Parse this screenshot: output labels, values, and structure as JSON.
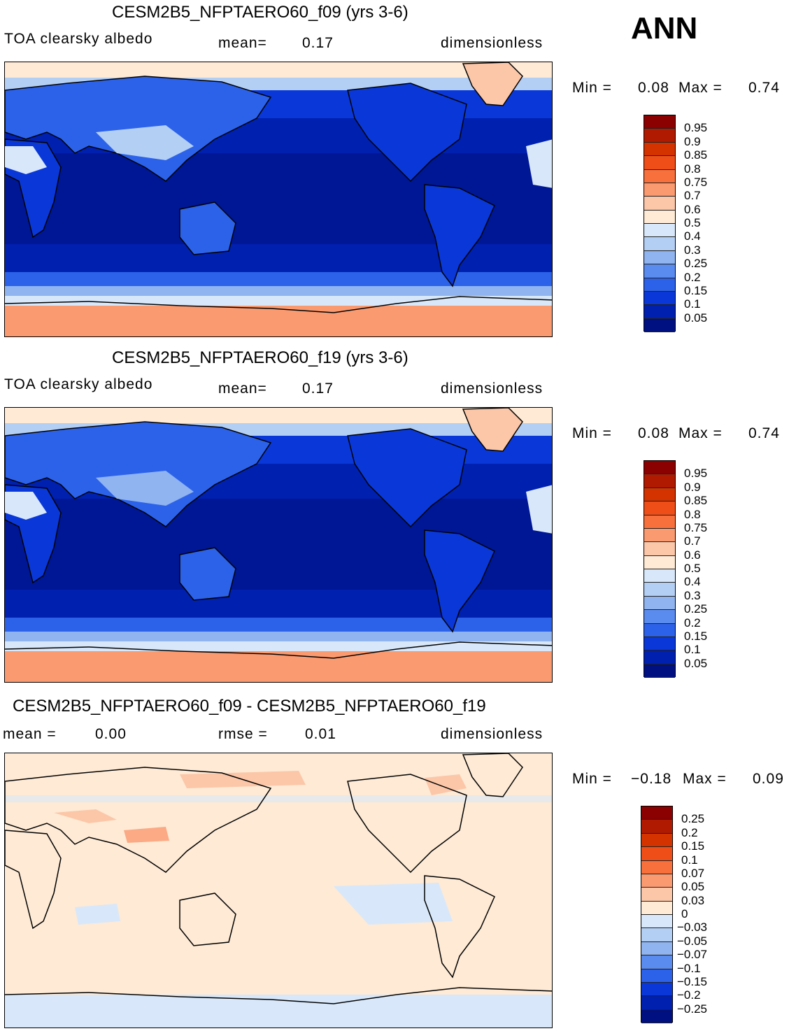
{
  "season": "ANN",
  "panels": [
    {
      "title": "CESM2B5_NFPTAERO60_f09 (yrs 3-6)",
      "variable": "TOA clearsky albedo",
      "stat1_label": "mean=",
      "stat1_value": "0.17",
      "units": "dimensionless",
      "min_label": "Min =",
      "min_value": "0.08",
      "max_label": "Max =",
      "max_value": "0.74",
      "levels": [
        "0.95",
        "0.9",
        "0.85",
        "0.8",
        "0.75",
        "0.7",
        "0.6",
        "0.5",
        "0.4",
        "0.3",
        "0.25",
        "0.2",
        "0.15",
        "0.1",
        "0.05"
      ]
    },
    {
      "title": "CESM2B5_NFPTAERO60_f19 (yrs 3-6)",
      "variable": "TOA clearsky albedo",
      "stat1_label": "mean=",
      "stat1_value": "0.17",
      "units": "dimensionless",
      "min_label": "Min =",
      "min_value": "0.08",
      "max_label": "Max =",
      "max_value": "0.74",
      "levels": [
        "0.95",
        "0.9",
        "0.85",
        "0.8",
        "0.75",
        "0.7",
        "0.6",
        "0.5",
        "0.4",
        "0.3",
        "0.25",
        "0.2",
        "0.15",
        "0.1",
        "0.05"
      ]
    },
    {
      "title": "CESM2B5_NFPTAERO60_f09 - CESM2B5_NFPTAERO60_f19",
      "stat1_label": "mean =",
      "stat1_value": "0.00",
      "stat2_label": "rmse =",
      "stat2_value": "0.01",
      "units": "dimensionless",
      "min_label": "Min =",
      "min_value": "−0.18",
      "max_label": "Max =",
      "max_value": "0.09",
      "levels": [
        "0.25",
        "0.2",
        "0.15",
        "0.1",
        "0.07",
        "0.05",
        "0.03",
        "0",
        "−0.03",
        "−0.05",
        "−0.07",
        "−0.1",
        "−0.15",
        "−0.2",
        "−0.25"
      ]
    }
  ],
  "colors": {
    "abs_scale": [
      "#8b0000",
      "#b01a00",
      "#d43300",
      "#f04e18",
      "#f8703c",
      "#fa9a70",
      "#fcc7a8",
      "#feead5",
      "#d8e8fa",
      "#b4cff4",
      "#8fb4f0",
      "#5a8cf0",
      "#2c62ea",
      "#0a38d8",
      "#0020b0",
      "#001080"
    ],
    "diff_scale": [
      "#8b0000",
      "#b01a00",
      "#d43300",
      "#f04e18",
      "#f8703c",
      "#fa9a70",
      "#fcc7a8",
      "#feead5",
      "#d8e8fa",
      "#b4cff4",
      "#8fb4f0",
      "#5a8cf0",
      "#2c62ea",
      "#0a38d8",
      "#0020b0",
      "#001080"
    ]
  }
}
